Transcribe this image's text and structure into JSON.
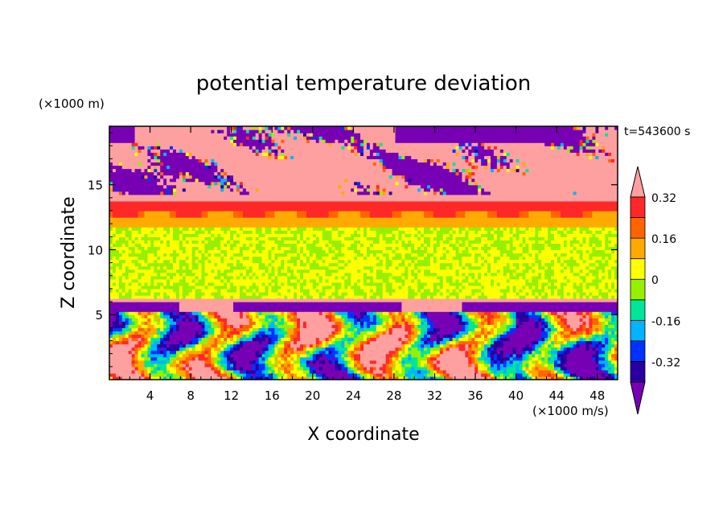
{
  "chart_data": {
    "type": "heatmap",
    "title": "potential temperature deviation",
    "xlabel": "X coordinate",
    "ylabel": "Z coordinate",
    "x_unit": "(×1000 m/s)",
    "y_unit": "(×1000 m)",
    "time_label": "t=543600 s",
    "xlim": [
      0,
      50
    ],
    "ylim": [
      0,
      19.5
    ],
    "x_ticks": [
      4,
      8,
      12,
      16,
      20,
      24,
      28,
      32,
      36,
      40,
      44,
      48
    ],
    "y_ticks": [
      5,
      10,
      15
    ],
    "colorbar": {
      "levels": [
        -0.4,
        -0.32,
        -0.24,
        -0.16,
        -0.08,
        0,
        0.08,
        0.16,
        0.24,
        0.32,
        0.4
      ],
      "tick_labels": [
        "0.32",
        "0.16",
        "0",
        "-0.16",
        "-0.32"
      ],
      "tick_values": [
        0.32,
        0.16,
        0,
        -0.16,
        -0.32
      ],
      "colors": [
        "#7800b4",
        "#2800a0",
        "#0032ff",
        "#00b4ff",
        "#00e696",
        "#96f000",
        "#ffff00",
        "#ffaa00",
        "#ff6400",
        "#ff2828",
        "#ffa0a0"
      ],
      "extend": "both"
    },
    "bands": [
      {
        "z": [
          0,
          5.2
        ],
        "description_value": "mixed"
      },
      {
        "z": [
          5.2,
          6.0
        ],
        "value": -0.4
      },
      {
        "z": [
          6.0,
          6.3
        ],
        "value": 0.4
      },
      {
        "z": [
          6.3,
          12.4
        ],
        "value": 0
      },
      {
        "z": [
          12.4,
          14.2
        ],
        "value": 0.3
      },
      {
        "z": [
          14.2,
          19.5
        ],
        "value": 0.4
      }
    ]
  }
}
